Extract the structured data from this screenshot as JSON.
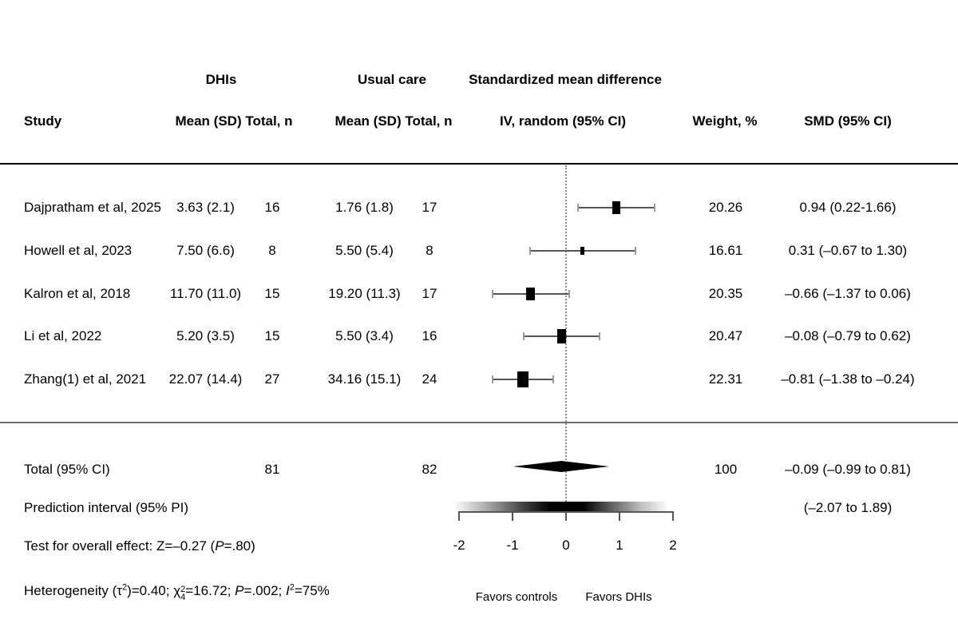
{
  "figure": {
    "background": "#ffffff",
    "text_color": "#000000",
    "accent_color": "#000000"
  },
  "header": {
    "group1_label": "DHIs",
    "group2_label": "Usual care",
    "plot_title": "Standardized mean difference",
    "col_study": "Study",
    "col_mean_total_1": "Mean (SD) Total, n",
    "col_mean_total_2": "Mean (SD) Total, n",
    "col_effect": "IV, random (95% CI)",
    "col_weight": "Weight, %",
    "col_smd": "SMD (95% CI)"
  },
  "chart_data": {
    "type": "scatter",
    "subtype": "forest-plot",
    "x_axis": {
      "min": -2,
      "max": 2,
      "ticks": [
        -2,
        -1,
        0,
        1,
        2
      ],
      "tick_labels": [
        "-2",
        "-1",
        "0",
        "1",
        "2"
      ],
      "zero_reference": 0,
      "favors_left": "Favors controls",
      "favors_right": "Favors DHIs"
    },
    "studies": [
      {
        "study": "Dajpratham et al, 2025",
        "dhi_mean_sd": "3.63 (2.1)",
        "dhi_n": "16",
        "uc_mean_sd": "1.76 (1.8)",
        "uc_n": "17",
        "weight": "20.26",
        "smd_label": "0.94 (0.22-1.66)",
        "est": 0.94,
        "lo": 0.22,
        "hi": 1.66
      },
      {
        "study": "Howell et al, 2023",
        "dhi_mean_sd": "7.50 (6.6)",
        "dhi_n": "8",
        "uc_mean_sd": "5.50 (5.4)",
        "uc_n": "8",
        "weight": "16.61",
        "smd_label": "0.31 (–0.67 to 1.30)",
        "est": 0.31,
        "lo": -0.67,
        "hi": 1.3
      },
      {
        "study": "Kalron et al, 2018",
        "dhi_mean_sd": "11.70 (11.0)",
        "dhi_n": "15",
        "uc_mean_sd": "19.20 (11.3)",
        "uc_n": "17",
        "weight": "20.35",
        "smd_label": "–0.66 (–1.37 to 0.06)",
        "est": -0.66,
        "lo": -1.37,
        "hi": 0.06
      },
      {
        "study": "Li et al, 2022",
        "dhi_mean_sd": "5.20 (3.5)",
        "dhi_n": "15",
        "uc_mean_sd": "5.50 (3.4)",
        "uc_n": "16",
        "weight": "20.47",
        "smd_label": "–0.08 (–0.79 to 0.62)",
        "est": -0.08,
        "lo": -0.79,
        "hi": 0.62
      },
      {
        "study": "Zhang(1) et al, 2021",
        "dhi_mean_sd": "22.07 (14.4)",
        "dhi_n": "27",
        "uc_mean_sd": "34.16 (15.1)",
        "uc_n": "24",
        "weight": "22.31",
        "smd_label": "–0.81 (–1.38 to –0.24)",
        "est": -0.81,
        "lo": -1.38,
        "hi": -0.24
      }
    ],
    "total": {
      "label": "Total (95% CI)",
      "dhi_n": "81",
      "uc_n": "82",
      "weight": "100",
      "smd_label": "–0.09 (–0.99 to 0.81)",
      "est": -0.09,
      "lo": -0.99,
      "hi": 0.81
    },
    "prediction_interval": {
      "label": "Prediction interval (95% PI)",
      "smd_label": "(–2.07 to 1.89)",
      "lo": -2.07,
      "hi": 1.89
    }
  },
  "footer": {
    "overall_effect_segments": [
      {
        "text": "Test for overall effect: Z=–0.27 ("
      },
      {
        "text": "P",
        "style": "italic"
      },
      {
        "text": "=.80)"
      }
    ],
    "heterogeneity_segments": [
      {
        "text": "Heterogeneity (τ"
      },
      {
        "text": "2",
        "style": "sup"
      },
      {
        "text": ")=0.40; χ"
      },
      {
        "style": "supsub",
        "sup": "2",
        "sub": "4"
      },
      {
        "text": "=16.72; "
      },
      {
        "text": "P",
        "style": "italic"
      },
      {
        "text": "=.002; "
      },
      {
        "text": "I",
        "style": "italic"
      },
      {
        "text": "2",
        "style": "sup"
      },
      {
        "text": "=75%"
      }
    ]
  }
}
